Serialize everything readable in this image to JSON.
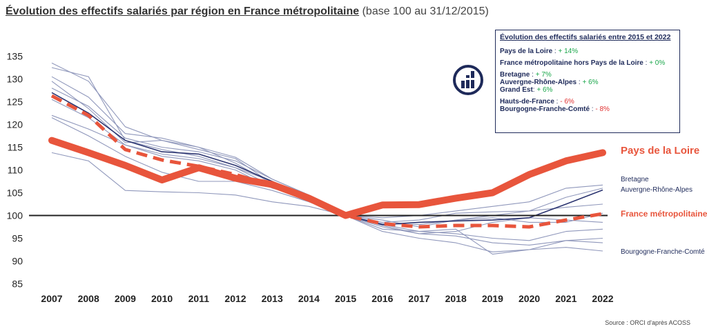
{
  "title": {
    "main": "Évolution des effectifs salariés par région en France métropolitaine",
    "sub": " (base 100 au 31/12/2015)"
  },
  "colors": {
    "pays_de_la_loire": "#e8553c",
    "france_metro": "#e8553c",
    "other_regions": "#8f97bb",
    "highlight_region": "#2b3470",
    "baseline": "#222222",
    "positive": "#19a64a",
    "negative": "#e03030"
  },
  "info_box": {
    "heading": "Évolution des effectifs salariés entre 2015 et 2022",
    "groups": [
      [
        {
          "name": "Pays de la Loire",
          "sep": " : ",
          "value": "+ 14%",
          "sign": "pos"
        }
      ],
      [
        {
          "name": "France métropolitaine hors Pays de la Loire",
          "sep": " : ",
          "value": "+ 0%",
          "sign": "pos"
        }
      ],
      [
        {
          "name": "Bretagne",
          "sep": " : ",
          "value": "+ 7%",
          "sign": "pos"
        },
        {
          "name": "Auvergne-Rhône-Alpes",
          "sep": " : ",
          "value": "+ 6%",
          "sign": "pos"
        },
        {
          "name": "Grand Est",
          "sep": ": ",
          "value": "+ 6%",
          "sign": "pos"
        }
      ],
      [
        {
          "name": "Hauts-de-France",
          "sep": " : ",
          "value": "- 6%",
          "sign": "neg"
        },
        {
          "name": "Bourgogne-Franche-Comté",
          "sep": " : ",
          "value": "- 8%",
          "sign": "neg"
        }
      ]
    ]
  },
  "series_labels": {
    "pays_de_la_loire": "Pays de la Loire",
    "france_metro": "France métropolitaine",
    "bretagne": "Bretagne",
    "auvergne": "Auvergne-Rhône-Alpes",
    "bourgogne": "Bourgogne-Franche-Comté"
  },
  "source": "Source : ORCI d'après ACOSS",
  "logo_icon": "building-chart-logo-icon",
  "chart_data": {
    "type": "line",
    "x": [
      2007,
      2008,
      2009,
      2010,
      2011,
      2012,
      2013,
      2014,
      2015,
      2016,
      2017,
      2018,
      2019,
      2020,
      2021,
      2022
    ],
    "ylim": [
      85,
      135
    ],
    "yticks": [
      85,
      90,
      95,
      100,
      105,
      110,
      115,
      120,
      125,
      130,
      135
    ],
    "baseline": 100,
    "grid": false,
    "legend": "none",
    "series": [
      {
        "name": "Pays de la Loire",
        "style": "thick-solid",
        "values": [
          116.5,
          113.8,
          111.0,
          107.8,
          110.5,
          108.2,
          106.8,
          103.8,
          100.0,
          102.3,
          102.4,
          103.8,
          105.0,
          109.0,
          112.0,
          113.8
        ]
      },
      {
        "name": "France métropolitaine",
        "style": "thick-dashed",
        "values": [
          126.3,
          122.0,
          114.5,
          112.2,
          110.8,
          109.0,
          106.6,
          104.0,
          100.0,
          98.2,
          97.5,
          97.8,
          97.8,
          97.5,
          99.0,
          100.4
        ]
      },
      {
        "name": "Bretagne",
        "style": "thin",
        "values": [
          122.0,
          119.0,
          115.5,
          113.5,
          112.5,
          110.5,
          107.5,
          104.5,
          100.0,
          99.5,
          100.0,
          101.0,
          102.0,
          103.0,
          106.0,
          106.7
        ]
      },
      {
        "name": "Auvergne-Rhône-Alpes",
        "style": "thin-dark",
        "values": [
          127.0,
          122.5,
          116.5,
          114.0,
          113.5,
          111.0,
          107.5,
          104.0,
          100.0,
          98.0,
          98.5,
          98.8,
          99.0,
          99.5,
          102.5,
          105.6
        ]
      },
      {
        "name": "Grand Est",
        "style": "thin",
        "values": [
          128.0,
          124.0,
          117.0,
          115.0,
          114.0,
          112.0,
          108.0,
          104.5,
          100.0,
          98.2,
          98.0,
          99.0,
          100.0,
          101.0,
          104.0,
          106.0
        ]
      },
      {
        "name": "Hauts-de-France",
        "style": "thin",
        "values": [
          132.5,
          130.5,
          116.5,
          114.5,
          113.0,
          110.5,
          106.5,
          103.5,
          100.0,
          97.5,
          96.0,
          95.5,
          94.0,
          93.5,
          94.5,
          94.0
        ]
      },
      {
        "name": "Bourgogne-Franche-Comté",
        "style": "thin",
        "values": [
          133.5,
          129.5,
          119.5,
          116.5,
          115.0,
          111.5,
          107.0,
          104.0,
          100.0,
          96.5,
          95.0,
          94.0,
          92.0,
          92.5,
          93.0,
          92.2
        ]
      },
      {
        "name": "",
        "style": "thin",
        "values": [
          113.8,
          112.0,
          105.5,
          105.2,
          105.0,
          104.5,
          103.0,
          102.0,
          100.0,
          98.5,
          99.0,
          100.5,
          100.8,
          101.0,
          101.8,
          102.5
        ]
      },
      {
        "name": "",
        "style": "thin",
        "values": [
          130.5,
          126.0,
          118.0,
          117.0,
          115.0,
          112.8,
          108.0,
          104.5,
          100.0,
          98.0,
          96.5,
          96.0,
          95.0,
          94.5,
          96.5,
          97.0
        ]
      },
      {
        "name": "",
        "style": "thin",
        "values": [
          125.5,
          121.5,
          115.5,
          113.0,
          112.0,
          110.0,
          106.0,
          104.0,
          100.0,
          97.8,
          96.0,
          96.5,
          98.5,
          99.5,
          99.0,
          98.5
        ]
      },
      {
        "name": "",
        "style": "thin",
        "values": [
          129.5,
          123.5,
          116.0,
          116.5,
          114.5,
          112.5,
          107.0,
          103.5,
          100.0,
          97.0,
          96.5,
          97.0,
          91.5,
          92.5,
          94.5,
          95.0
        ]
      },
      {
        "name": "",
        "style": "thin",
        "values": [
          121.5,
          117.5,
          113.0,
          109.5,
          107.5,
          107.5,
          105.5,
          103.0,
          100.0,
          99.0,
          97.5,
          99.0,
          99.5,
          98.5,
          98.5,
          100.5
        ]
      }
    ]
  }
}
